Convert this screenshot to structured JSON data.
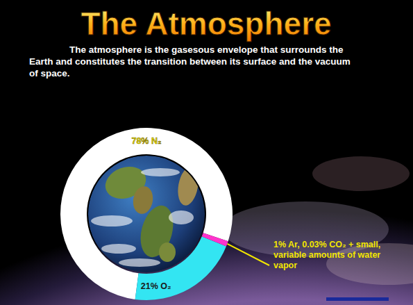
{
  "chart_data": {
    "type": "pie",
    "title": "The Atmosphere",
    "subtitle": "The atmosphere is the gasesous envelope that surrounds the Earth and constitutes the transition between its surface and the vacuum of space.",
    "categories": [
      "78% N₂",
      "21% O₂",
      "1% Ar, 0.03% CO₂ + small, variable amounts of water vapor"
    ],
    "values": [
      78,
      21,
      1
    ],
    "colors": [
      "#ffffff",
      "#33e5f2",
      "#ff33cc"
    ]
  }
}
